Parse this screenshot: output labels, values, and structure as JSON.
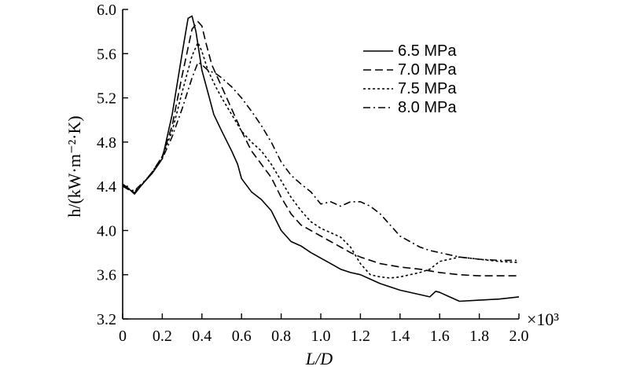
{
  "chart_data": {
    "type": "line",
    "xlabel": "L/D",
    "ylabel": "h/(kW·m⁻²·K)",
    "x_multiplier": "×10³",
    "xlim": [
      0,
      2.0
    ],
    "ylim": [
      3.2,
      6.0
    ],
    "x_ticks": [
      "0",
      "0.2",
      "0.4",
      "0.6",
      "0.8",
      "1.0",
      "1.2",
      "1.4",
      "1.6",
      "1.8",
      "2.0"
    ],
    "y_ticks": [
      "3.2",
      "3.6",
      "4.0",
      "4.4",
      "4.8",
      "5.2",
      "5.6",
      "6.0"
    ],
    "legend_position": "top-right",
    "grid": false,
    "series": [
      {
        "name": "6.5 MPa",
        "dash": "solid",
        "x": [
          0.0,
          0.03,
          0.06,
          0.1,
          0.15,
          0.2,
          0.25,
          0.3,
          0.33,
          0.35,
          0.37,
          0.4,
          0.43,
          0.46,
          0.5,
          0.55,
          0.58,
          0.6,
          0.65,
          0.7,
          0.75,
          0.8,
          0.85,
          0.9,
          0.95,
          1.0,
          1.05,
          1.1,
          1.15,
          1.2,
          1.3,
          1.4,
          1.5,
          1.55,
          1.58,
          1.6,
          1.65,
          1.7,
          1.8,
          1.9,
          2.0
        ],
        "y": [
          4.42,
          4.38,
          4.33,
          4.42,
          4.52,
          4.65,
          5.05,
          5.6,
          5.92,
          5.94,
          5.8,
          5.45,
          5.25,
          5.05,
          4.9,
          4.72,
          4.6,
          4.47,
          4.35,
          4.28,
          4.18,
          4.0,
          3.9,
          3.86,
          3.8,
          3.75,
          3.7,
          3.65,
          3.62,
          3.6,
          3.52,
          3.46,
          3.42,
          3.4,
          3.45,
          3.44,
          3.4,
          3.36,
          3.37,
          3.38,
          3.4
        ]
      },
      {
        "name": "7.0 MPa",
        "dash": "dashed",
        "x": [
          0.0,
          0.03,
          0.06,
          0.1,
          0.15,
          0.2,
          0.25,
          0.3,
          0.35,
          0.38,
          0.4,
          0.42,
          0.45,
          0.5,
          0.55,
          0.6,
          0.65,
          0.7,
          0.75,
          0.8,
          0.85,
          0.9,
          0.95,
          1.0,
          1.05,
          1.1,
          1.15,
          1.2,
          1.3,
          1.4,
          1.5,
          1.6,
          1.7,
          1.8,
          1.9,
          2.0
        ],
        "y": [
          4.41,
          4.38,
          4.34,
          4.42,
          4.53,
          4.67,
          4.95,
          5.4,
          5.82,
          5.89,
          5.85,
          5.7,
          5.5,
          5.3,
          5.1,
          4.9,
          4.72,
          4.6,
          4.48,
          4.3,
          4.15,
          4.05,
          4.0,
          3.95,
          3.9,
          3.85,
          3.8,
          3.76,
          3.7,
          3.67,
          3.65,
          3.62,
          3.6,
          3.59,
          3.59,
          3.59
        ]
      },
      {
        "name": "7.5 MPa",
        "dash": "dotted",
        "x": [
          0.0,
          0.03,
          0.06,
          0.1,
          0.15,
          0.2,
          0.25,
          0.3,
          0.35,
          0.38,
          0.4,
          0.43,
          0.47,
          0.5,
          0.55,
          0.6,
          0.65,
          0.7,
          0.75,
          0.8,
          0.85,
          0.9,
          0.95,
          1.0,
          1.05,
          1.1,
          1.15,
          1.2,
          1.25,
          1.3,
          1.35,
          1.4,
          1.5,
          1.55,
          1.6,
          1.7,
          1.8,
          1.9,
          2.0
        ],
        "y": [
          4.4,
          4.37,
          4.35,
          4.42,
          4.53,
          4.67,
          4.9,
          5.25,
          5.58,
          5.7,
          5.62,
          5.45,
          5.3,
          5.2,
          5.05,
          4.9,
          4.8,
          4.72,
          4.6,
          4.45,
          4.3,
          4.18,
          4.08,
          4.02,
          3.98,
          3.94,
          3.85,
          3.7,
          3.6,
          3.58,
          3.57,
          3.58,
          3.62,
          3.65,
          3.72,
          3.76,
          3.74,
          3.72,
          3.71
        ]
      },
      {
        "name": "8.0 MPa",
        "dash": "dash-dot",
        "x": [
          0.0,
          0.03,
          0.06,
          0.1,
          0.15,
          0.2,
          0.25,
          0.3,
          0.35,
          0.38,
          0.4,
          0.43,
          0.47,
          0.5,
          0.55,
          0.6,
          0.65,
          0.7,
          0.75,
          0.8,
          0.85,
          0.9,
          0.95,
          1.0,
          1.05,
          1.1,
          1.15,
          1.2,
          1.25,
          1.3,
          1.35,
          1.4,
          1.45,
          1.5,
          1.55,
          1.6,
          1.7,
          1.8,
          1.9,
          2.0
        ],
        "y": [
          4.4,
          4.37,
          4.36,
          4.43,
          4.52,
          4.65,
          4.85,
          5.1,
          5.38,
          5.52,
          5.5,
          5.45,
          5.42,
          5.38,
          5.3,
          5.2,
          5.08,
          4.95,
          4.8,
          4.62,
          4.5,
          4.42,
          4.35,
          4.24,
          4.26,
          4.22,
          4.26,
          4.26,
          4.22,
          4.15,
          4.05,
          3.95,
          3.9,
          3.85,
          3.82,
          3.8,
          3.76,
          3.74,
          3.73,
          3.73
        ]
      }
    ]
  }
}
